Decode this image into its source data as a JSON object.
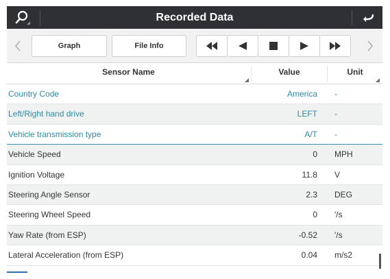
{
  "header": {
    "title": "Recorded Data",
    "search_icon": "search-icon",
    "back_icon": "return-arrow-icon"
  },
  "toolbar": {
    "graph_label": "Graph",
    "file_info_label": "File Info",
    "icons": [
      "rewind-icon",
      "previous-icon",
      "stop-icon",
      "play-icon",
      "fast-forward-icon"
    ]
  },
  "columns": {
    "name": "Sensor Name",
    "value": "Value",
    "unit": "Unit"
  },
  "rows": [
    {
      "name": "Country Code",
      "value": "America",
      "unit": "-",
      "kind": "info"
    },
    {
      "name": "Left/Right hand drive",
      "value": "LEFT",
      "unit": "-",
      "kind": "info"
    },
    {
      "name": "Vehicle transmission type",
      "value": "A/T",
      "unit": "-",
      "kind": "info"
    },
    {
      "name": "Vehicle Speed",
      "value": "0",
      "unit": "MPH",
      "kind": "data"
    },
    {
      "name": "Ignition Voltage",
      "value": "11.8",
      "unit": "V",
      "kind": "data"
    },
    {
      "name": "Steering Angle Sensor",
      "value": "2.3",
      "unit": "DEG",
      "kind": "data"
    },
    {
      "name": "Steering Wheel Speed",
      "value": "0",
      "unit": "'/s",
      "kind": "data"
    },
    {
      "name": "Yaw Rate (from ESP)",
      "value": "-0.52",
      "unit": "'/s",
      "kind": "data"
    },
    {
      "name": "Lateral Acceleration (from ESP)",
      "value": "0.04",
      "unit": "m/s2",
      "kind": "data"
    }
  ],
  "colors": {
    "titlebar": "#2f3033",
    "info_text": "#2a8ca3",
    "row_shade": "#f0f2f2"
  }
}
